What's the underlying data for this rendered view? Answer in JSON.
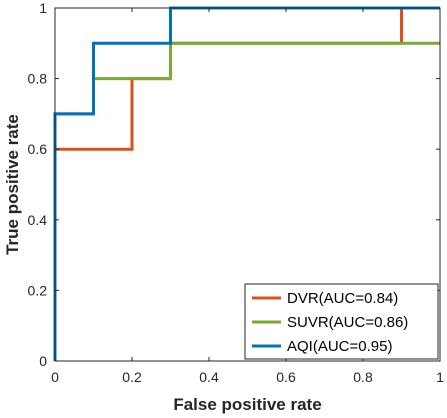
{
  "chart_data": {
    "type": "line",
    "title": "",
    "xlabel": "False positive rate",
    "ylabel": "True positive rate",
    "xlim": [
      0,
      1
    ],
    "ylim": [
      0,
      1
    ],
    "xticks": [
      0,
      0.2,
      0.4,
      0.6,
      0.8,
      1
    ],
    "yticks": [
      0,
      0.2,
      0.4,
      0.6,
      0.8,
      1
    ],
    "xtick_labels": [
      "0",
      "0.2",
      "0.4",
      "0.6",
      "0.8",
      "1"
    ],
    "ytick_labels": [
      "0",
      "0.2",
      "0.4",
      "0.6",
      "0.8",
      "1"
    ],
    "grid": false,
    "legend_position": "bottom-right",
    "series": [
      {
        "name": "DVR(AUC=0.84)",
        "color": "#D95319",
        "x": [
          0,
          0,
          0.2,
          0.2,
          0.3,
          0.3,
          0.9,
          0.9,
          1
        ],
        "y": [
          0,
          0.6,
          0.6,
          0.8,
          0.8,
          0.9,
          0.9,
          1,
          1
        ]
      },
      {
        "name": "SUVR(AUC=0.86)",
        "color": "#77AC30",
        "x": [
          0,
          0,
          0.1,
          0.1,
          0.3,
          0.3,
          1
        ],
        "y": [
          0,
          0.7,
          0.7,
          0.8,
          0.8,
          0.9,
          0.9
        ]
      },
      {
        "name": "AQI(AUC=0.95)",
        "color": "#0072BD",
        "x": [
          0,
          0,
          0.1,
          0.1,
          0.3,
          0.3,
          1
        ],
        "y": [
          0,
          0.7,
          0.7,
          0.9,
          0.9,
          1,
          1
        ]
      }
    ]
  }
}
